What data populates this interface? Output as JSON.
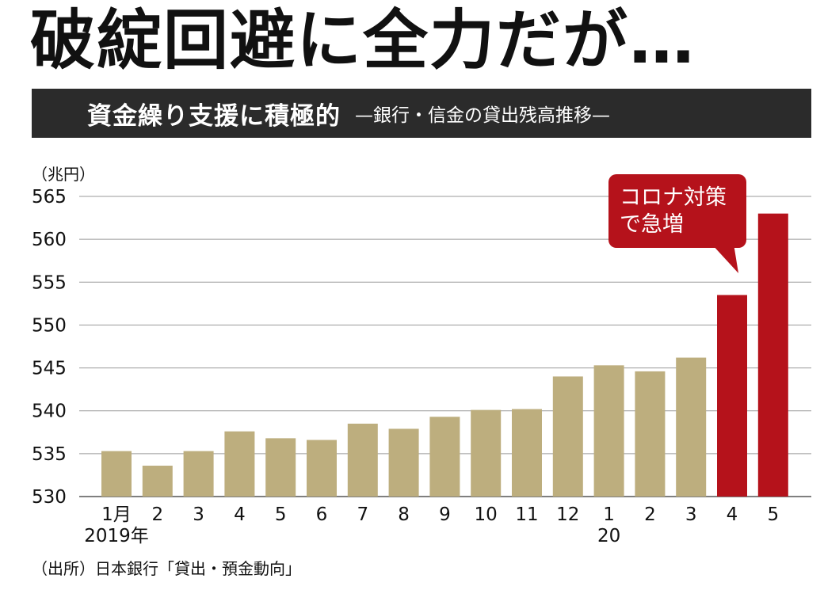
{
  "headline": "破綻回避に全力だが…",
  "banner": {
    "title": "資金繰り支援に積極的",
    "subtitle": "—銀行・信金の貸出残高推移—"
  },
  "unit_label": "（兆円）",
  "source": "（出所）日本銀行「貸出・預金動向」",
  "callout": {
    "lines": [
      "コロナ対策",
      "で急増"
    ]
  },
  "colors": {
    "normal_bar": "#bdae7e",
    "highlight_bar": "#b5121b",
    "banner_bg": "#2b2b2b",
    "grid": "#9a9a9a"
  },
  "chart_data": {
    "type": "bar",
    "categories": [
      "1月",
      "2",
      "3",
      "4",
      "5",
      "6",
      "7",
      "8",
      "9",
      "10",
      "11",
      "12",
      "1",
      "2",
      "3",
      "4",
      "5"
    ],
    "year_labels": [
      {
        "index": 0,
        "label": "2019年"
      },
      {
        "index": 12,
        "label": "20"
      }
    ],
    "values": [
      535.3,
      533.6,
      535.3,
      537.6,
      536.8,
      536.6,
      538.5,
      537.9,
      539.3,
      540.1,
      540.2,
      544.0,
      545.3,
      544.6,
      546.2,
      553.5,
      563.0
    ],
    "highlight": [
      false,
      false,
      false,
      false,
      false,
      false,
      false,
      false,
      false,
      false,
      false,
      false,
      false,
      false,
      false,
      true,
      true
    ],
    "ylim": [
      530,
      565
    ],
    "yticks": [
      530,
      535,
      540,
      545,
      550,
      555,
      560,
      565
    ],
    "grid": true,
    "title": "資金繰り支援に積極的",
    "subtitle": "—銀行・信金の貸出残高推移—",
    "ylabel": "（兆円）",
    "xlabel": ""
  }
}
